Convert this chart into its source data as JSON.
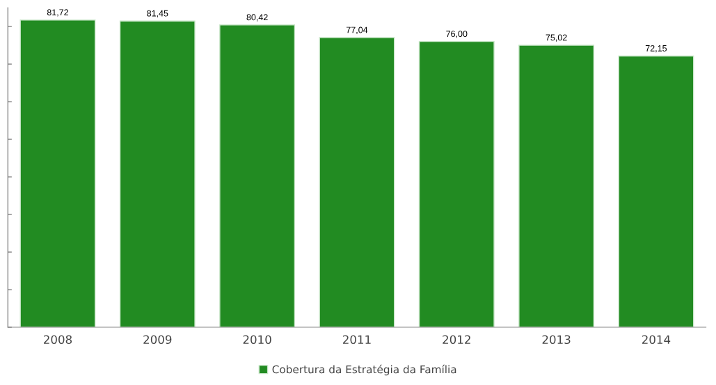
{
  "chart_data": {
    "type": "bar",
    "categories": [
      "2008",
      "2009",
      "2010",
      "2011",
      "2012",
      "2013",
      "2014"
    ],
    "series": [
      {
        "name": "Cobertura da Estratégia da Família",
        "color": "#228b22",
        "values": [
          81.72,
          81.45,
          80.42,
          77.04,
          76.0,
          75.02,
          72.15
        ],
        "value_labels": [
          "81,72",
          "81,45",
          "80,42",
          "77,04",
          "76,00",
          "75,02",
          "72,15"
        ]
      }
    ],
    "ylim": [
      0,
      85
    ],
    "yticks": [
      {
        "value": 0,
        "label": null
      },
      {
        "value": 10,
        "label": null
      },
      {
        "value": 20,
        "label": null
      },
      {
        "value": 30,
        "label": null
      },
      {
        "value": 40,
        "label": null
      },
      {
        "value": 50,
        "label": null
      },
      {
        "value": 60,
        "label": null
      },
      {
        "value": 70,
        "label": null
      },
      {
        "value": 80,
        "label": null
      }
    ],
    "tick_labels": "x",
    "grid": false,
    "legend": "bottom"
  }
}
